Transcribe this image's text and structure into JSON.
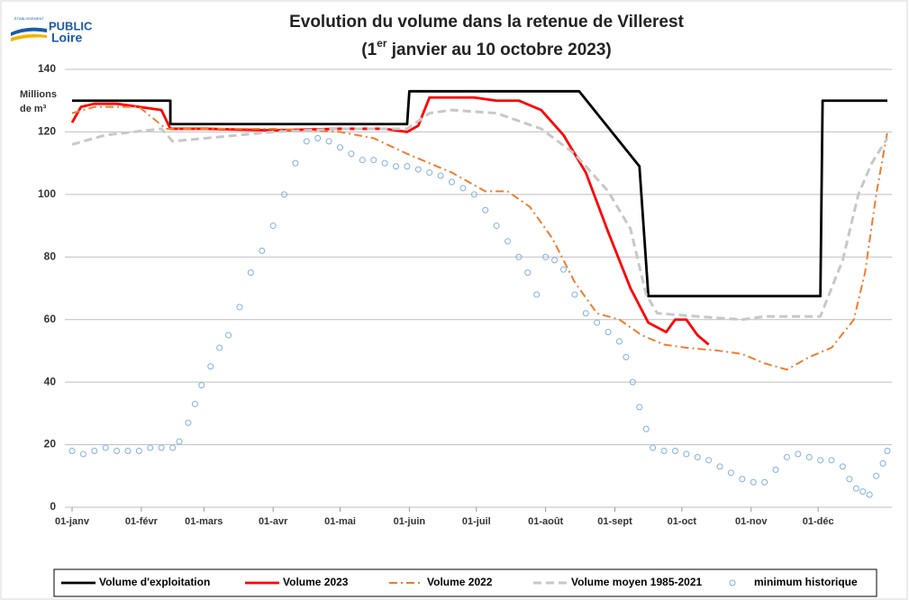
{
  "logo": {
    "small": "ÉTABLISSEMENT",
    "top": "PUBLIC",
    "bottom": "Loire"
  },
  "chart_data": {
    "type": "line",
    "title": "Evolution du volume dans la retenue de Villerest",
    "subtitle": [
      "(1",
      "er",
      " janvier au 10 octobre 2023)"
    ],
    "y_label": [
      "Millions",
      "de m³"
    ],
    "xlim": [
      0,
      365
    ],
    "ylim": [
      0,
      140
    ],
    "yticks": [
      0,
      20,
      40,
      60,
      80,
      100,
      120,
      140
    ],
    "xticks": [
      {
        "value": 0,
        "label": "01-janv"
      },
      {
        "value": 31,
        "label": "01-févr"
      },
      {
        "value": 59,
        "label": "01-mars"
      },
      {
        "value": 90,
        "label": "01-avr"
      },
      {
        "value": 120,
        "label": "01-mai"
      },
      {
        "value": 151,
        "label": "01-juin"
      },
      {
        "value": 181,
        "label": "01-juil"
      },
      {
        "value": 212,
        "label": "01-août"
      },
      {
        "value": 243,
        "label": "01-sept"
      },
      {
        "value": 273,
        "label": "01-oct"
      },
      {
        "value": 304,
        "label": "01-nov"
      },
      {
        "value": 334,
        "label": "01-déc"
      }
    ],
    "grid": true,
    "legend": "bottom",
    "series": [
      {
        "name": "Volume d'exploitation",
        "color": "#000000",
        "style": "solid",
        "x": [
          0,
          44,
          44,
          150,
          151,
          227,
          254,
          258,
          335,
          336,
          365
        ],
        "values": [
          130,
          130,
          122.5,
          122.5,
          133,
          133,
          109,
          67.5,
          67.5,
          130,
          130
        ]
      },
      {
        "name": "Volume 2023",
        "color": "#ff0000",
        "style": "solid",
        "x": [
          0,
          4,
          10,
          20,
          30,
          40,
          44,
          60,
          90,
          120,
          140,
          150,
          155,
          160,
          170,
          180,
          190,
          200,
          210,
          220,
          230,
          240,
          250,
          258,
          266,
          270,
          275,
          280,
          285
        ],
        "values": [
          123,
          128,
          129,
          129,
          128,
          127,
          121,
          121,
          120.5,
          121,
          121,
          120,
          122,
          131,
          131,
          131,
          130,
          130,
          127,
          119,
          107,
          88,
          70,
          59,
          56,
          60,
          60,
          55,
          52
        ]
      },
      {
        "name": "Volume 2022",
        "color": "#ed7d31",
        "style": "dashdot",
        "x": [
          0,
          10,
          30,
          42,
          60,
          90,
          120,
          135,
          150,
          170,
          185,
          195,
          205,
          215,
          225,
          235,
          245,
          255,
          265,
          275,
          290,
          300,
          310,
          320,
          330,
          340,
          350,
          355,
          360,
          365
        ],
        "values": [
          126,
          128,
          128,
          121,
          121,
          121,
          120,
          118,
          113,
          107,
          101,
          101,
          96,
          86,
          72,
          62,
          60,
          55,
          52,
          51,
          50,
          49,
          46,
          44,
          48,
          51,
          60,
          75,
          100,
          120
        ]
      },
      {
        "name": "Volume moyen 1985-2021",
        "color": "#c8c8c8",
        "style": "dashed",
        "x": [
          0,
          15,
          40,
          45,
          60,
          90,
          120,
          150,
          160,
          170,
          190,
          210,
          225,
          240,
          250,
          257,
          262,
          280,
          300,
          310,
          325,
          335,
          345,
          352,
          358,
          365
        ],
        "values": [
          116,
          119,
          121,
          117,
          118,
          120,
          121,
          121,
          126,
          127,
          126,
          121,
          113,
          101,
          89,
          68,
          62,
          61,
          60,
          61,
          61,
          61,
          79,
          100,
          110,
          118
        ]
      },
      {
        "name": "minimum historique",
        "color": "#7fb0e0",
        "style": "markers",
        "x": [
          0,
          5,
          10,
          15,
          20,
          25,
          30,
          35,
          40,
          45,
          48,
          52,
          55,
          58,
          62,
          66,
          70,
          75,
          80,
          85,
          90,
          95,
          100,
          105,
          110,
          115,
          120,
          125,
          130,
          135,
          140,
          145,
          150,
          155,
          160,
          165,
          170,
          175,
          180,
          185,
          190,
          195,
          200,
          204,
          208,
          212,
          216,
          220,
          225,
          230,
          235,
          240,
          245,
          248,
          251,
          254,
          257,
          260,
          265,
          270,
          275,
          280,
          285,
          290,
          295,
          300,
          305,
          310,
          315,
          320,
          325,
          330,
          335,
          340,
          345,
          348,
          351,
          354,
          357,
          360,
          363,
          365
        ],
        "values": [
          18,
          17,
          18,
          19,
          18,
          18,
          18,
          19,
          19,
          19,
          21,
          27,
          33,
          39,
          45,
          51,
          55,
          64,
          75,
          82,
          90,
          100,
          110,
          117,
          118,
          117,
          115,
          113,
          111,
          111,
          110,
          109,
          109,
          108,
          107,
          106,
          104,
          102,
          100,
          95,
          90,
          85,
          80,
          75,
          68,
          80,
          79,
          76,
          68,
          62,
          59,
          56,
          53,
          48,
          40,
          32,
          25,
          19,
          18,
          18,
          17,
          16,
          15,
          13,
          11,
          9,
          8,
          8,
          12,
          16,
          17,
          16,
          15,
          15,
          13,
          9,
          6,
          5,
          4,
          10,
          14,
          18
        ]
      }
    ]
  }
}
